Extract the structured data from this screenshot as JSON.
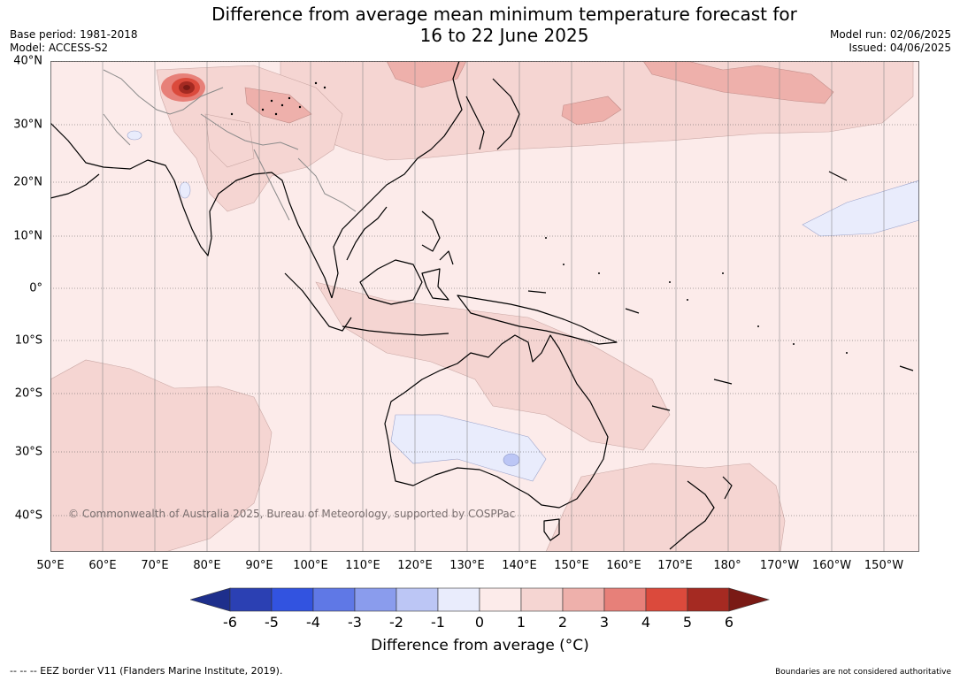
{
  "title": {
    "line1": "Difference from average mean minimum temperature forecast for",
    "line2": "16 to 22 June 2025"
  },
  "meta": {
    "base_period": "Base period: 1981-2018",
    "model": "Model: ACCESS-S2",
    "model_run": "Model run: 02/06/2025",
    "issued": "Issued: 04/06/2025"
  },
  "map": {
    "copyright": "© Commonwealth of Australia 2025, Bureau of Meteorology, supported by COSPPac",
    "lat_labels": [
      "40°N",
      "30°N",
      "20°N",
      "10°N",
      "0°",
      "10°S",
      "20°S",
      "30°S",
      "40°S"
    ],
    "lon_labels": [
      "50°E",
      "60°E",
      "70°E",
      "80°E",
      "90°E",
      "100°E",
      "110°E",
      "120°E",
      "130°E",
      "140°E",
      "150°E",
      "160°E",
      "170°E",
      "180°",
      "170°W",
      "160°W",
      "150°W"
    ]
  },
  "colorbar": {
    "ticks": [
      "-6",
      "-5",
      "-4",
      "-3",
      "-2",
      "-1",
      "0",
      "1",
      "2",
      "3",
      "4",
      "5",
      "6"
    ],
    "colors": [
      "#1e2f8c",
      "#2b40b3",
      "#3253e0",
      "#5f78e6",
      "#8a9ced",
      "#bcc6f5",
      "#e9ecfc",
      "#fcebea",
      "#f5d5d2",
      "#eeb0ab",
      "#e78079",
      "#db4a3c",
      "#a52a22",
      "#7a1a15"
    ],
    "label": "Difference from average (°C)"
  },
  "footer": {
    "eez": "--  --  -- EEZ border V11 (Flanders Marine Institute, 2019).",
    "boundaries": "Boundaries are not considered authoritative"
  }
}
